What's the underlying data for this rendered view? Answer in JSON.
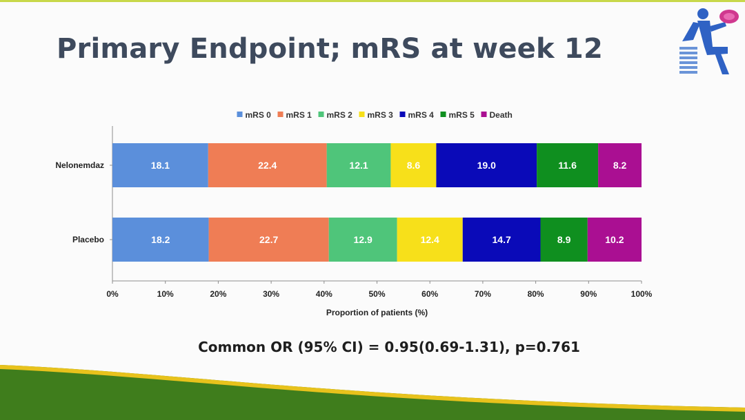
{
  "slide": {
    "title": "Primary Endpoint; mRS at week 12",
    "statistic": "Common OR (95% CI) = 0.95(0.69-1.31), p=0.761",
    "logo_icon": "stroke-association-logo-icon",
    "colors": {
      "title": "#3e4a5d",
      "footer_green": "#3f7d1c",
      "footer_yellow": "#e8c21c"
    }
  },
  "chart_data": {
    "type": "bar",
    "orientation": "horizontal",
    "stacked": true,
    "normalized": true,
    "categories": [
      "Nelonemdaz",
      "Placebo"
    ],
    "series": [
      {
        "name": "mRS 0",
        "color": "#5b8fdb",
        "values": [
          18.1,
          18.2
        ]
      },
      {
        "name": "mRS 1",
        "color": "#ef7d55",
        "values": [
          22.4,
          22.7
        ]
      },
      {
        "name": "mRS 2",
        "color": "#4fc57a",
        "values": [
          12.1,
          12.9
        ]
      },
      {
        "name": "mRS 3",
        "color": "#f7e01a",
        "values": [
          8.6,
          12.4
        ]
      },
      {
        "name": "mRS 4",
        "color": "#0a0ab8",
        "values": [
          19.0,
          14.7
        ]
      },
      {
        "name": "mRS 5",
        "color": "#0f8f1f",
        "values": [
          11.6,
          8.9
        ]
      },
      {
        "name": "Death",
        "color": "#aa0f92",
        "values": [
          8.2,
          10.2
        ]
      }
    ],
    "xlabel": "Proportion of patients (%)",
    "ylabel": "",
    "xlim": [
      0,
      100
    ],
    "xticks": [
      "0%",
      "10%",
      "20%",
      "30%",
      "40%",
      "50%",
      "60%",
      "70%",
      "80%",
      "90%",
      "100%"
    ],
    "legend": "top",
    "grid": false,
    "data_labels": true
  }
}
